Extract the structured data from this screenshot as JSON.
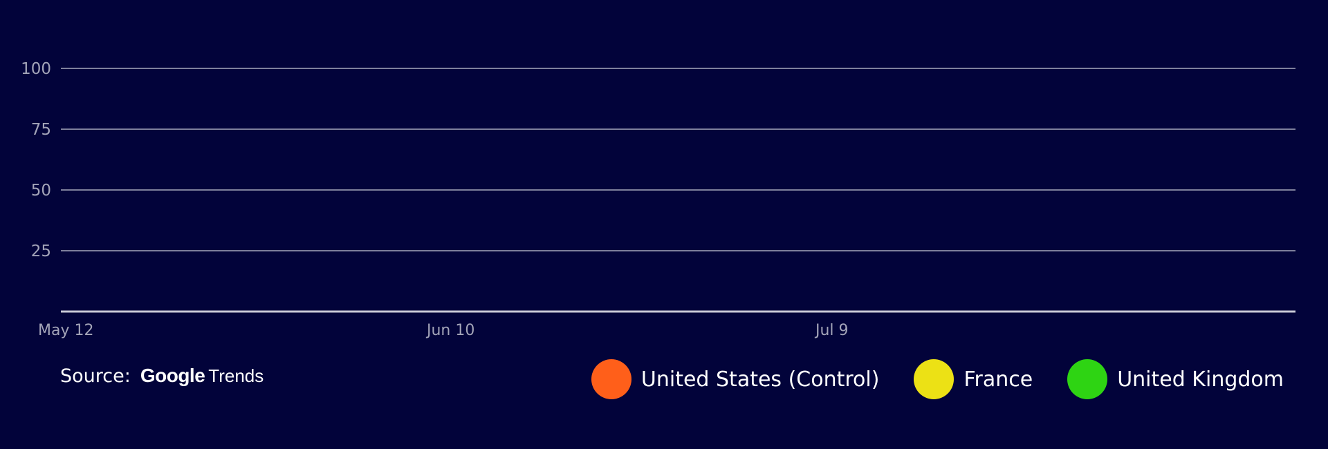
{
  "chart_data": {
    "type": "line",
    "x_tick_labels": [
      "May 12",
      "Jun 10",
      "Jul 9"
    ],
    "y_ticks": [
      25,
      50,
      75,
      100
    ],
    "ylim": [
      0,
      100
    ],
    "grid": true,
    "legend_position": "bottom-right",
    "series": [
      {
        "name": "United States (Control)",
        "color": "#ff5f1a",
        "values": []
      },
      {
        "name": "France",
        "color": "#ece115",
        "values": []
      },
      {
        "name": "United Kingdom",
        "color": "#2ed413",
        "values": []
      }
    ]
  },
  "source": {
    "label": "Source:",
    "logo_primary": "Google",
    "logo_secondary": "Trends"
  },
  "colors": {
    "background": "#02033a",
    "gridline": "#c9cad6",
    "tick_text": "#a3a4b8"
  }
}
